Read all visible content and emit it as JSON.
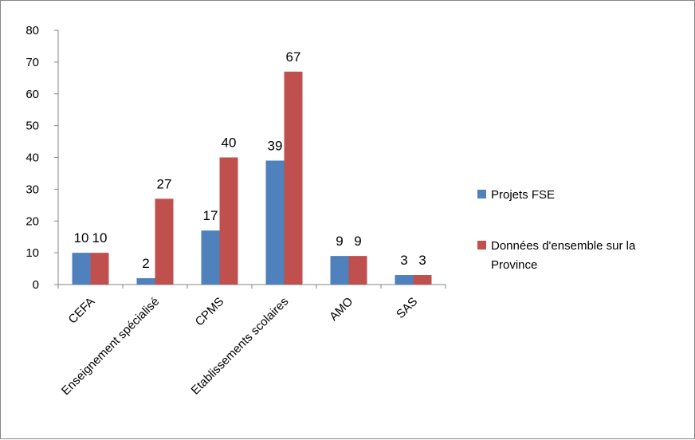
{
  "chart_data": {
    "type": "bar",
    "categories": [
      "CEFA",
      "Enseignement spécialisé",
      "CPMS",
      "Etablissements scolaires",
      "AMO",
      "SAS"
    ],
    "series": [
      {
        "name": "Projets FSE",
        "values": [
          10,
          2,
          17,
          39,
          9,
          3
        ],
        "color": "#4F81BD"
      },
      {
        "name": "Données d'ensemble  sur la Province",
        "legend_lines": [
          "Données d'ensemble  sur la",
          "Province"
        ],
        "values": [
          10,
          27,
          40,
          67,
          9,
          3
        ],
        "color": "#C0504D"
      }
    ],
    "ylim": [
      0,
      80
    ],
    "yticks": [
      0,
      10,
      20,
      30,
      40,
      50,
      60,
      70,
      80
    ],
    "grid": false,
    "legend_position": "right",
    "data_labels": true,
    "title": "",
    "xlabel": "",
    "ylabel": ""
  }
}
